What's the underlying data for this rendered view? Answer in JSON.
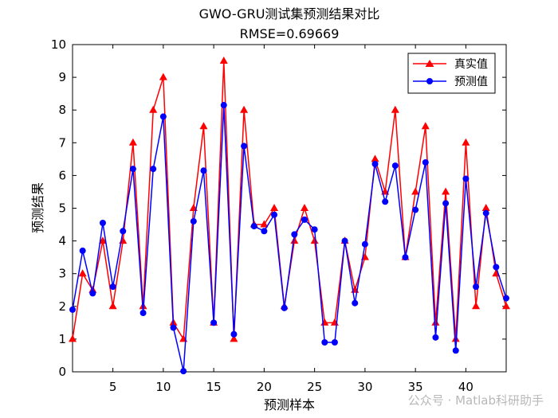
{
  "watermark": "公众号 · Matlab科研助手",
  "chart_data": {
    "type": "line",
    "title": "GWO-GRU测试集预测结果对比",
    "subtitle": "RMSE=0.69669",
    "xlabel": "预测样本",
    "ylabel": "预测结果",
    "xlim": [
      1,
      44
    ],
    "ylim": [
      0,
      10
    ],
    "xticks": [
      5,
      10,
      15,
      20,
      25,
      30,
      35,
      40
    ],
    "yticks": [
      0,
      1,
      2,
      3,
      4,
      5,
      6,
      7,
      8,
      9,
      10
    ],
    "grid": false,
    "legend_position": "top-right",
    "x": [
      1,
      2,
      3,
      4,
      5,
      6,
      7,
      8,
      9,
      10,
      11,
      12,
      13,
      14,
      15,
      16,
      17,
      18,
      19,
      20,
      21,
      22,
      23,
      24,
      25,
      26,
      27,
      28,
      29,
      30,
      31,
      32,
      33,
      34,
      35,
      36,
      37,
      38,
      39,
      40,
      41,
      42,
      43,
      44
    ],
    "series": [
      {
        "name": "真实值",
        "color": "#ff0000",
        "marker": "triangle",
        "values": [
          1,
          3,
          2.5,
          4,
          2,
          4,
          7,
          2,
          8,
          9,
          1.5,
          1,
          5,
          7.5,
          1.5,
          9.5,
          1,
          8,
          4.5,
          4.5,
          5,
          2,
          4,
          5,
          4,
          1.5,
          1.5,
          4,
          2.5,
          3.5,
          6.5,
          5.5,
          8,
          3.5,
          5.5,
          7.5,
          1.5,
          5.5,
          1,
          7,
          2,
          5,
          3,
          2
        ]
      },
      {
        "name": "预测值",
        "color": "#0000ff",
        "marker": "circle",
        "values": [
          1.9,
          3.7,
          2.4,
          4.55,
          2.6,
          4.3,
          6.2,
          1.8,
          6.2,
          7.8,
          1.35,
          0.02,
          4.6,
          6.15,
          1.5,
          8.15,
          1.15,
          6.9,
          4.45,
          4.3,
          4.8,
          1.95,
          4.2,
          4.65,
          4.35,
          0.9,
          0.9,
          4.0,
          2.1,
          3.9,
          6.35,
          5.2,
          6.3,
          3.5,
          4.95,
          6.4,
          1.05,
          5.15,
          0.65,
          5.9,
          2.6,
          4.85,
          3.2,
          2.25
        ]
      }
    ]
  }
}
